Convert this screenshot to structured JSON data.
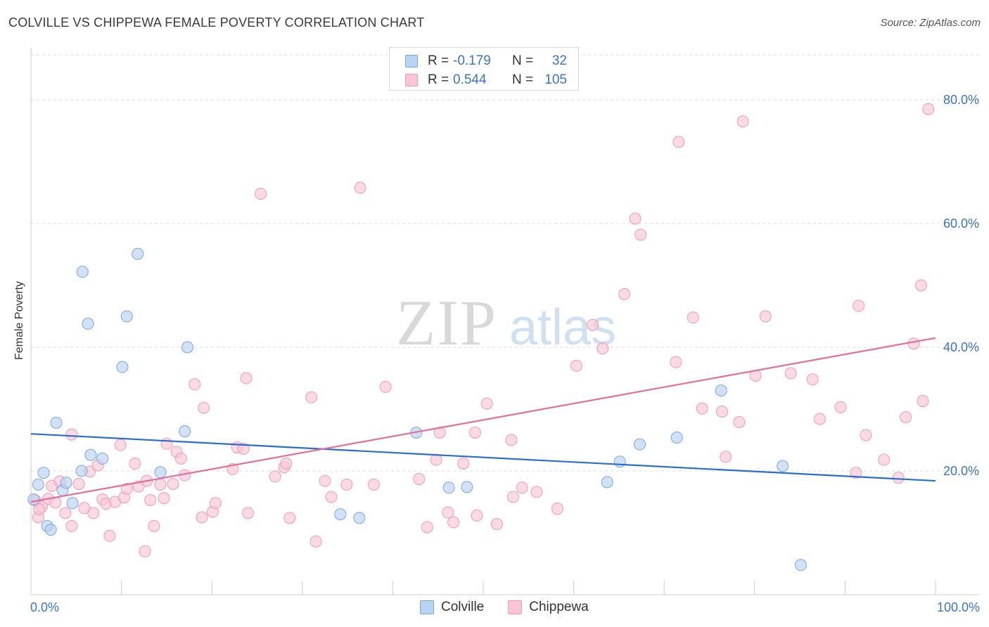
{
  "title": "COLVILLE VS CHIPPEWA FEMALE POVERTY CORRELATION CHART",
  "source": "Source: ZipAtlas.com",
  "watermark": {
    "zip": "ZIP",
    "atlas": "atlas"
  },
  "legend": {
    "rows": [
      {
        "r_label": "R =",
        "r_value": "-0.179",
        "n_label": "N =",
        "n_value": "32"
      },
      {
        "r_label": "R =",
        "r_value": "0.544",
        "n_label": "N =",
        "n_value": "105"
      }
    ],
    "items": [
      "Colville",
      "Chippewa"
    ]
  },
  "colors": {
    "colville_fill": "#b9d3f3",
    "colville_stroke": "#7aa6e0",
    "colville_line": "#2a6dd0",
    "chippewa_fill": "#f9c6d6",
    "chippewa_stroke": "#f09ab7",
    "chippewa_line": "#e0709a",
    "tick_text": "#3b73c8",
    "grid": "#dddddd"
  },
  "chart_data": {
    "type": "scatter",
    "title": "COLVILLE VS CHIPPEWA FEMALE POVERTY CORRELATION CHART",
    "xlabel": "",
    "ylabel": "Female Poverty",
    "xlim": [
      0,
      100
    ],
    "ylim": [
      0,
      82
    ],
    "x_tick_labels": [
      "0.0%",
      "100.0%"
    ],
    "y_ticks": [
      20,
      40,
      60,
      80
    ],
    "y_tick_labels": [
      "20.0%",
      "40.0%",
      "60.0%",
      "80.0%"
    ],
    "grid": "horizontal dashed",
    "series": [
      {
        "name": "Colville",
        "r": -0.179,
        "n": 32,
        "trend": {
          "x": [
            0,
            100
          ],
          "y": [
            26.0,
            18.4
          ]
        },
        "points": [
          [
            0.3,
            15.4
          ],
          [
            0.8,
            17.8
          ],
          [
            1.4,
            19.7
          ],
          [
            1.8,
            11.1
          ],
          [
            2.2,
            10.5
          ],
          [
            2.8,
            27.8
          ],
          [
            3.5,
            16.9
          ],
          [
            3.9,
            18.1
          ],
          [
            4.6,
            14.8
          ],
          [
            5.6,
            20.0
          ],
          [
            5.7,
            52.2
          ],
          [
            6.3,
            43.8
          ],
          [
            6.6,
            22.6
          ],
          [
            7.9,
            22.0
          ],
          [
            10.1,
            36.8
          ],
          [
            10.6,
            45.0
          ],
          [
            11.8,
            55.1
          ],
          [
            14.3,
            19.8
          ],
          [
            17.3,
            40.0
          ],
          [
            17.0,
            26.4
          ],
          [
            34.2,
            13.0
          ],
          [
            36.3,
            12.4
          ],
          [
            42.6,
            26.2
          ],
          [
            46.2,
            17.3
          ],
          [
            48.2,
            17.4
          ],
          [
            63.7,
            18.2
          ],
          [
            65.1,
            21.5
          ],
          [
            67.3,
            24.3
          ],
          [
            71.4,
            25.4
          ],
          [
            76.3,
            33.0
          ],
          [
            83.1,
            20.8
          ],
          [
            85.1,
            4.8
          ]
        ]
      },
      {
        "name": "Chippewa",
        "r": 0.544,
        "n": 105,
        "trend": {
          "x": [
            0,
            100
          ],
          "y": [
            15.0,
            41.5
          ]
        },
        "points": [
          [
            0.5,
            15.2
          ],
          [
            0.8,
            12.5
          ],
          [
            1.2,
            14.2
          ],
          [
            1.9,
            15.5
          ],
          [
            2.3,
            17.6
          ],
          [
            2.7,
            14.9
          ],
          [
            3.2,
            18.3
          ],
          [
            3.8,
            13.2
          ],
          [
            4.5,
            11.1
          ],
          [
            4.5,
            25.9
          ],
          [
            5.3,
            17.9
          ],
          [
            5.9,
            14.0
          ],
          [
            6.5,
            19.9
          ],
          [
            6.9,
            13.2
          ],
          [
            7.4,
            20.9
          ],
          [
            7.9,
            15.4
          ],
          [
            8.3,
            14.7
          ],
          [
            8.7,
            9.5
          ],
          [
            9.3,
            15.0
          ],
          [
            9.9,
            24.2
          ],
          [
            10.3,
            15.7
          ],
          [
            10.6,
            17.1
          ],
          [
            11.5,
            21.2
          ],
          [
            11.9,
            17.5
          ],
          [
            12.6,
            7.0
          ],
          [
            12.8,
            18.4
          ],
          [
            13.2,
            15.3
          ],
          [
            13.6,
            11.1
          ],
          [
            14.3,
            17.8
          ],
          [
            14.7,
            15.6
          ],
          [
            15.0,
            24.4
          ],
          [
            15.7,
            17.9
          ],
          [
            16.1,
            23.1
          ],
          [
            16.6,
            22.0
          ],
          [
            17.0,
            19.3
          ],
          [
            18.1,
            34.0
          ],
          [
            18.9,
            12.5
          ],
          [
            19.1,
            30.2
          ],
          [
            20.1,
            13.4
          ],
          [
            20.4,
            14.8
          ],
          [
            22.3,
            20.3
          ],
          [
            22.8,
            23.8
          ],
          [
            23.5,
            23.6
          ],
          [
            23.8,
            35.0
          ],
          [
            24.0,
            13.2
          ],
          [
            25.4,
            64.8
          ],
          [
            27.0,
            19.1
          ],
          [
            28.0,
            20.6
          ],
          [
            28.2,
            21.2
          ],
          [
            28.6,
            12.4
          ],
          [
            31.0,
            31.9
          ],
          [
            31.5,
            8.6
          ],
          [
            32.5,
            18.4
          ],
          [
            33.2,
            15.8
          ],
          [
            34.9,
            17.8
          ],
          [
            36.4,
            65.8
          ],
          [
            37.9,
            17.8
          ],
          [
            39.2,
            33.6
          ],
          [
            42.9,
            18.7
          ],
          [
            43.8,
            10.9
          ],
          [
            44.8,
            21.8
          ],
          [
            45.2,
            26.2
          ],
          [
            46.1,
            13.3
          ],
          [
            46.7,
            11.7
          ],
          [
            47.8,
            21.2
          ],
          [
            49.1,
            26.2
          ],
          [
            49.3,
            12.8
          ],
          [
            50.4,
            30.9
          ],
          [
            51.5,
            11.4
          ],
          [
            53.1,
            25.0
          ],
          [
            53.3,
            15.8
          ],
          [
            54.3,
            17.3
          ],
          [
            55.9,
            16.6
          ],
          [
            58.2,
            13.9
          ],
          [
            60.3,
            37.0
          ],
          [
            62.1,
            43.6
          ],
          [
            63.2,
            39.8
          ],
          [
            65.6,
            48.6
          ],
          [
            66.8,
            60.8
          ],
          [
            67.4,
            58.2
          ],
          [
            71.3,
            37.6
          ],
          [
            71.6,
            73.2
          ],
          [
            73.2,
            44.8
          ],
          [
            74.2,
            30.1
          ],
          [
            76.4,
            29.6
          ],
          [
            76.8,
            22.3
          ],
          [
            78.3,
            27.9
          ],
          [
            78.7,
            76.5
          ],
          [
            80.1,
            35.4
          ],
          [
            81.2,
            45.0
          ],
          [
            84.0,
            35.8
          ],
          [
            86.4,
            34.8
          ],
          [
            87.2,
            28.4
          ],
          [
            89.5,
            30.3
          ],
          [
            91.2,
            19.7
          ],
          [
            91.5,
            46.7
          ],
          [
            92.3,
            25.8
          ],
          [
            94.3,
            21.8
          ],
          [
            95.9,
            18.9
          ],
          [
            96.7,
            28.7
          ],
          [
            97.6,
            40.6
          ],
          [
            98.4,
            50.0
          ],
          [
            98.6,
            31.3
          ],
          [
            99.2,
            78.5
          ],
          [
            0.9,
            13.8
          ]
        ]
      }
    ]
  }
}
